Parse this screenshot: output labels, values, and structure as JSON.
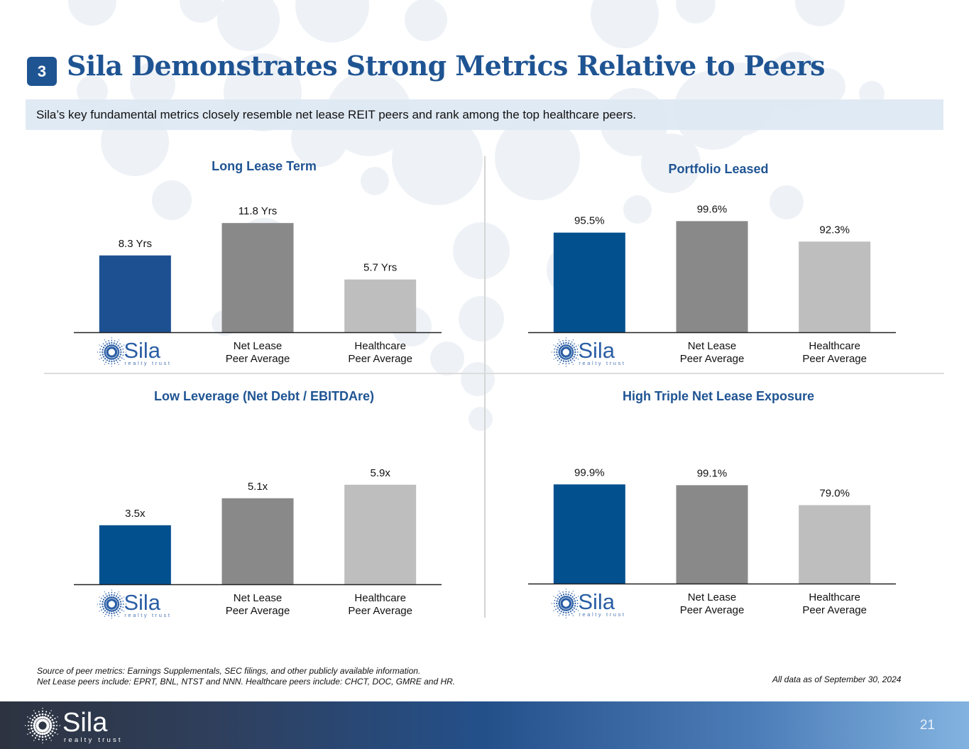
{
  "slide": {
    "section_number": "3",
    "title": "Sila Demonstrates Strong Metrics Relative to Peers",
    "subtitle": "Sila’s key fundamental metrics closely resemble net lease REIT peers and rank among the top healthcare peers.",
    "page_number": "21"
  },
  "brand": {
    "logo_word": "Sila",
    "logo_tagline": "realty trust",
    "logo_icon": "sunburst-dots-icon",
    "colors": {
      "title_blue": "#1f5493",
      "sila_bar": "#1c5091",
      "sila_bar_alt": "#03508f",
      "net_lease_bar": "#898989",
      "healthcare_bar": "#bebebe",
      "subtitle_bg": "#dde8f3"
    }
  },
  "categories": [
    "Sila",
    "Net Lease Peer Average",
    "Healthcare Peer Average"
  ],
  "category_labels": [
    {
      "lines": []
    },
    {
      "lines": [
        "Net Lease",
        "Peer Average"
      ]
    },
    {
      "lines": [
        "Healthcare",
        "Peer Average"
      ]
    }
  ],
  "chart_data": [
    {
      "type": "bar",
      "title": "Long Lease Term",
      "categories": [
        "Sila",
        "Net Lease Peer Average",
        "Healthcare Peer Average"
      ],
      "values": [
        8.3,
        11.8,
        5.7
      ],
      "value_labels": [
        "8.3 Yrs",
        "11.8 Yrs",
        "5.7 Yrs"
      ],
      "unit": "Yrs",
      "xlabel": "",
      "ylabel": "",
      "ylim": [
        0,
        13.5
      ],
      "grid": false,
      "legend": "none"
    },
    {
      "type": "bar",
      "title": "Portfolio Leased",
      "categories": [
        "Sila",
        "Net Lease Peer Average",
        "Healthcare Peer Average"
      ],
      "values": [
        95.5,
        99.6,
        92.3
      ],
      "value_labels": [
        "95.5%",
        "99.6%",
        "92.3%"
      ],
      "unit": "%",
      "xlabel": "",
      "ylabel": "",
      "ylim": [
        60,
        103
      ],
      "grid": false,
      "legend": "none"
    },
    {
      "type": "bar",
      "title": "Low Leverage (Net Debt / EBITDAre)",
      "categories": [
        "Sila",
        "Net Lease Peer Average",
        "Healthcare Peer Average"
      ],
      "values": [
        3.5,
        5.1,
        5.9
      ],
      "value_labels": [
        "3.5x",
        "5.1x",
        "5.9x"
      ],
      "unit": "x",
      "xlabel": "",
      "ylabel": "",
      "ylim": [
        0,
        7.7
      ],
      "grid": false,
      "legend": "none"
    },
    {
      "type": "bar",
      "title": "High Triple Net Lease Exposure",
      "categories": [
        "Sila",
        "Net Lease Peer Average",
        "Healthcare Peer Average"
      ],
      "values": [
        99.9,
        99.1,
        79.0
      ],
      "value_labels": [
        "99.9%",
        "99.1%",
        "79.0%"
      ],
      "unit": "%",
      "xlabel": "",
      "ylabel": "",
      "ylim": [
        0,
        128
      ],
      "grid": false,
      "legend": "none"
    }
  ],
  "footnotes": {
    "source": "Source of peer metrics: Earnings Supplementals, SEC filings, and other publicly available information.",
    "peers": "Net Lease peers include: EPRT, BNL, NTST and NNN. Healthcare peers include: CHCT, DOC, GMRE and HR.",
    "as_of": "All data as of September 30, 2024"
  }
}
